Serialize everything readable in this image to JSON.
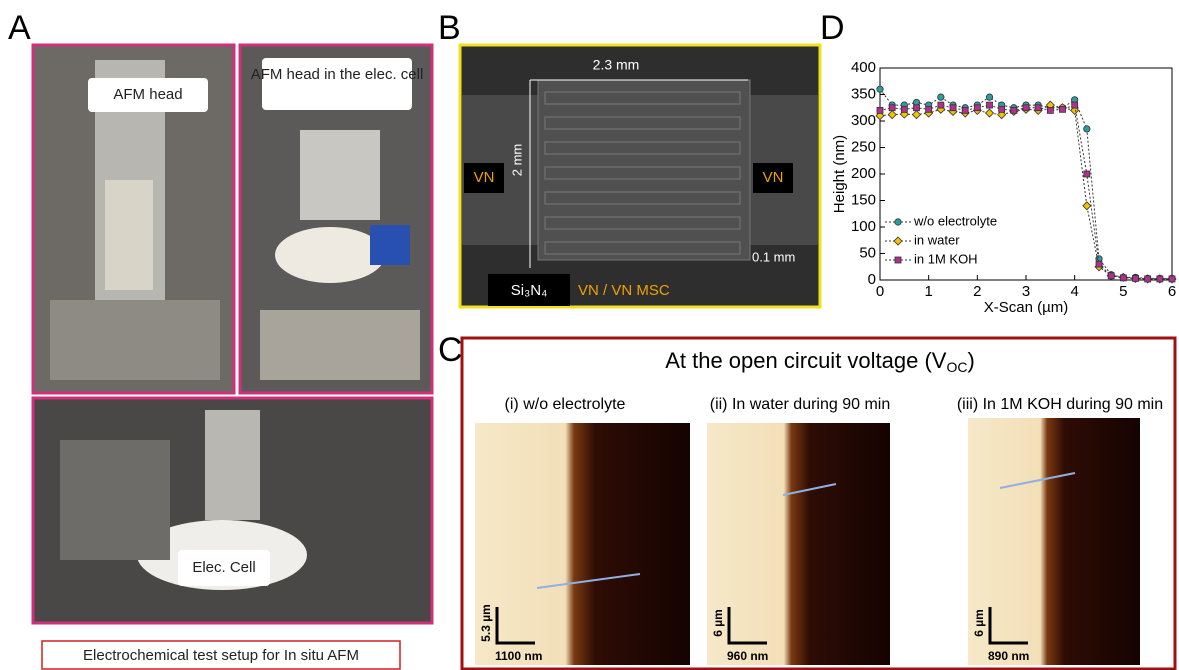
{
  "panel_labels": {
    "a": "A",
    "b": "B",
    "c": "C",
    "d": "D"
  },
  "panel_a": {
    "photo_labels": [
      "AFM head",
      "AFM head in the elec. cell",
      "Elec. Cell"
    ],
    "caption": "Electrochemical test setup for In situ AFM"
  },
  "panel_b": {
    "width_label": "2.3 mm",
    "height_label": "2 mm",
    "left_label": "VN",
    "right_label": "VN",
    "gap_label": "0.1 mm",
    "substrate_label": "Si₃N₄",
    "device_label": "VN / VN MSC"
  },
  "panel_c": {
    "title_main": "At the open circuit voltage (V",
    "title_sub": "OC",
    "title_end": ")",
    "images": [
      {
        "caption": "(i) w/o electrolyte",
        "vertical_scale": "5.3 µm",
        "horizontal_scale": "1100 nm"
      },
      {
        "caption": "(ii) In water during 90 min",
        "vertical_scale": "6 µm",
        "horizontal_scale": "960 nm"
      },
      {
        "caption": "(iii) In 1M KOH during 90 min",
        "vertical_scale": "6 µm",
        "horizontal_scale": "890 nm"
      }
    ]
  },
  "chart_data": {
    "type": "line",
    "x_label": "X-Scan (µm)",
    "y_label": "Height (nm)",
    "x": [
      0,
      0.25,
      0.5,
      0.75,
      1,
      1.25,
      1.5,
      1.75,
      2,
      2.25,
      2.5,
      2.75,
      3,
      3.25,
      3.5,
      3.75,
      4,
      4.25,
      4.5,
      4.75,
      5,
      5.25,
      5.5,
      5.75,
      6
    ],
    "series": [
      {
        "name": "w/o electrolyte",
        "color": "#2a9d9d",
        "marker": "circle",
        "values": [
          360,
          330,
          330,
          335,
          330,
          345,
          330,
          325,
          330,
          345,
          330,
          325,
          330,
          330,
          325,
          325,
          340,
          285,
          40,
          10,
          5,
          5,
          3,
          3,
          3
        ]
      },
      {
        "name": "in water",
        "color": "#f2c200",
        "marker": "diamond",
        "values": [
          310,
          312,
          313,
          312,
          315,
          322,
          318,
          315,
          320,
          315,
          312,
          318,
          322,
          320,
          330,
          325,
          320,
          140,
          25,
          8,
          5,
          3,
          2,
          2,
          2
        ]
      },
      {
        "name": "in 1M KOH",
        "color": "#b03090",
        "marker": "square",
        "values": [
          320,
          325,
          322,
          325,
          322,
          330,
          325,
          320,
          325,
          330,
          322,
          320,
          325,
          325,
          320,
          322,
          330,
          200,
          30,
          8,
          4,
          3,
          2,
          2,
          2
        ]
      }
    ],
    "xlim": [
      0,
      6
    ],
    "ylim": [
      0,
      400
    ],
    "xticks": [
      0,
      1,
      2,
      3,
      4,
      5,
      6
    ],
    "yticks": [
      0,
      50,
      100,
      150,
      200,
      250,
      300,
      350,
      400
    ],
    "legend": "lower left"
  }
}
